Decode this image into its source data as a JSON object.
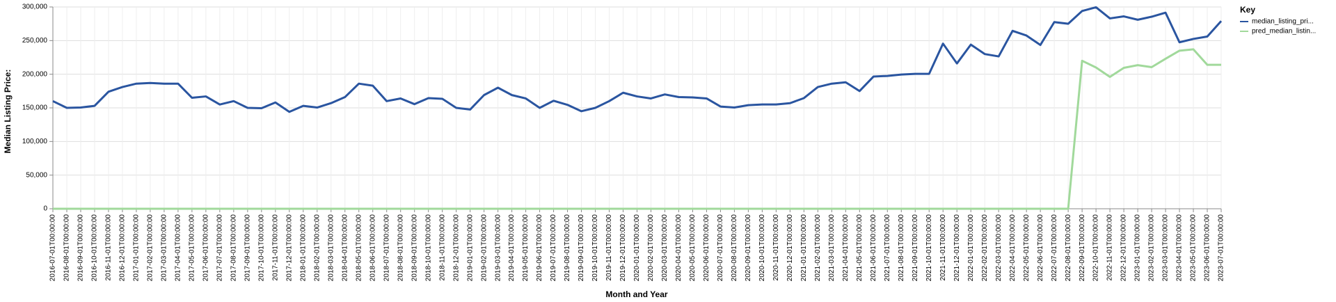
{
  "chart_data": {
    "type": "line",
    "x_label": "Month and Year",
    "y_label": "Median Listing Price:",
    "legend_title": "Key",
    "legend": "top-right",
    "grid": true,
    "ylim": [
      0,
      300000
    ],
    "yticks": [
      0,
      {
        "value": 50000,
        "label": "50,000"
      },
      {
        "value": 100000,
        "label": "100,000"
      },
      {
        "value": 150000,
        "label": "150,000"
      },
      {
        "value": 200000,
        "label": "200,000"
      },
      {
        "value": 250000,
        "label": "250,000"
      },
      {
        "value": 300000,
        "label": "300,000"
      }
    ],
    "categories": [
      "2016-07-01T00:00:00",
      "2016-08-01T00:00:00",
      "2016-09-01T00:00:00",
      "2016-10-01T00:00:00",
      "2016-11-01T00:00:00",
      "2016-12-01T00:00:00",
      "2017-01-01T00:00:00",
      "2017-02-01T00:00:00",
      "2017-03-01T00:00:00",
      "2017-04-01T00:00:00",
      "2017-05-01T00:00:00",
      "2017-06-01T00:00:00",
      "2017-07-01T00:00:00",
      "2017-08-01T00:00:00",
      "2017-09-01T00:00:00",
      "2017-10-01T00:00:00",
      "2017-11-01T00:00:00",
      "2017-12-01T00:00:00",
      "2018-01-01T00:00:00",
      "2018-02-01T00:00:00",
      "2018-03-01T00:00:00",
      "2018-04-01T00:00:00",
      "2018-05-01T00:00:00",
      "2018-06-01T00:00:00",
      "2018-07-01T00:00:00",
      "2018-08-01T00:00:00",
      "2018-09-01T00:00:00",
      "2018-10-01T00:00:00",
      "2018-11-01T00:00:00",
      "2018-12-01T00:00:00",
      "2019-01-01T00:00:00",
      "2019-02-01T00:00:00",
      "2019-03-01T00:00:00",
      "2019-04-01T00:00:00",
      "2019-05-01T00:00:00",
      "2019-06-01T00:00:00",
      "2019-07-01T00:00:00",
      "2019-08-01T00:00:00",
      "2019-09-01T00:00:00",
      "2019-10-01T00:00:00",
      "2019-11-01T00:00:00",
      "2019-12-01T00:00:00",
      "2020-01-01T00:00:00",
      "2020-02-01T00:00:00",
      "2020-03-01T00:00:00",
      "2020-04-01T00:00:00",
      "2020-05-01T00:00:00",
      "2020-06-01T00:00:00",
      "2020-07-01T00:00:00",
      "2020-08-01T00:00:00",
      "2020-09-01T00:00:00",
      "2020-10-01T00:00:00",
      "2020-11-01T00:00:00",
      "2020-12-01T00:00:00",
      "2021-01-01T00:00:00",
      "2021-02-01T00:00:00",
      "2021-03-01T00:00:00",
      "2021-04-01T00:00:00",
      "2021-05-01T00:00:00",
      "2021-06-01T00:00:00",
      "2021-07-01T00:00:00",
      "2021-08-01T00:00:00",
      "2021-09-01T00:00:00",
      "2021-10-01T00:00:00",
      "2021-11-01T00:00:00",
      "2021-12-01T00:00:00",
      "2022-01-01T00:00:00",
      "2022-02-01T00:00:00",
      "2022-03-01T00:00:00",
      "2022-04-01T00:00:00",
      "2022-05-01T00:00:00",
      "2022-06-01T00:00:00",
      "2022-07-01T00:00:00",
      "2022-08-01T00:00:00",
      "2022-09-01T00:00:00",
      "2022-10-01T00:00:00",
      "2022-11-01T00:00:00",
      "2022-12-01T00:00:00",
      "2023-01-01T00:00:00",
      "2023-02-01T00:00:00",
      "2023-03-01T00:00:00",
      "2023-04-01T00:00:00",
      "2023-05-01T00:00:00",
      "2023-06-01T00:00:00",
      "2023-07-01T00:00:00"
    ],
    "series": [
      {
        "name": "median_listing_pri...",
        "color": "#2a55a0",
        "values": [
          160000,
          150000,
          150500,
          153000,
          174000,
          181000,
          186000,
          187000,
          186000,
          186000,
          165000,
          167000,
          155000,
          160000,
          150000,
          149500,
          158000,
          144000,
          153000,
          150500,
          157000,
          166000,
          186000,
          183000,
          160000,
          164000,
          155500,
          164500,
          163500,
          150000,
          147500,
          169000,
          180000,
          169000,
          164000,
          150000,
          160500,
          154500,
          145000,
          150000,
          160000,
          172500,
          167000,
          164000,
          170000,
          166000,
          165500,
          164000,
          152000,
          150500,
          154000,
          155000,
          155000,
          157000,
          164500,
          181000,
          186000,
          188000,
          175000,
          196500,
          197500,
          199500,
          200500,
          200500,
          245500,
          216000,
          244000,
          230000,
          226500,
          264500,
          257500,
          243500,
          277500,
          275000,
          294000,
          299500,
          283000,
          286000,
          281000,
          285500,
          291500,
          247500,
          252500,
          256000,
          279000
        ]
      },
      {
        "name": "pred_median_listin...",
        "color": "#a1d99b",
        "values": [
          0,
          0,
          0,
          0,
          0,
          0,
          0,
          0,
          0,
          0,
          0,
          0,
          0,
          0,
          0,
          0,
          0,
          0,
          0,
          0,
          0,
          0,
          0,
          0,
          0,
          0,
          0,
          0,
          0,
          0,
          0,
          0,
          0,
          0,
          0,
          0,
          0,
          0,
          0,
          0,
          0,
          0,
          0,
          0,
          0,
          0,
          0,
          0,
          0,
          0,
          0,
          0,
          0,
          0,
          0,
          0,
          0,
          0,
          0,
          0,
          0,
          0,
          0,
          0,
          0,
          0,
          0,
          0,
          0,
          0,
          0,
          0,
          0,
          0,
          220000,
          210000,
          196000,
          209500,
          213500,
          210500,
          223000,
          235000,
          237000,
          214000,
          214000
        ]
      }
    ]
  }
}
